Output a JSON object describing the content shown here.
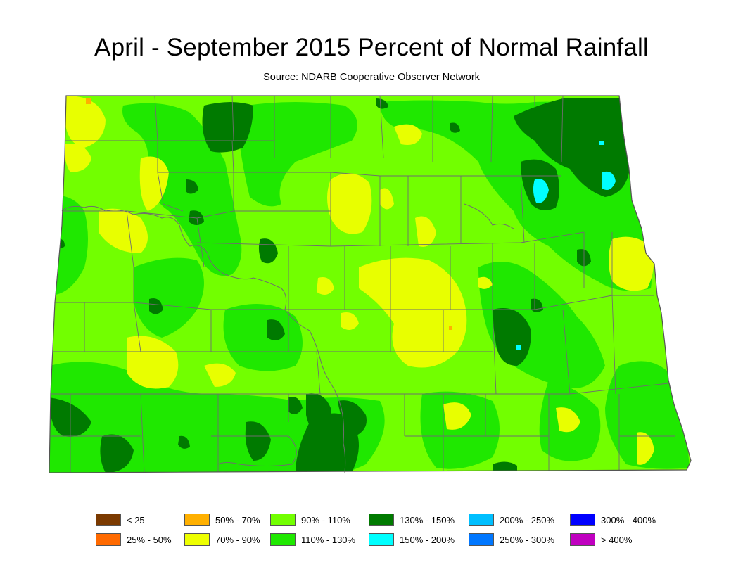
{
  "title": "April - September 2015 Percent of Normal Rainfall",
  "subtitle": "Source: NDARB Cooperative Observer Network",
  "colors": {
    "base": "#72FF00",
    "yellow": "#E8FF00",
    "mid_green": "#1FE800",
    "dark_green": "#007A00",
    "cyan": "#00FFFF",
    "orange": "#FFB000",
    "county_line": "#6E6E6E",
    "outline": "#555555"
  },
  "legend": [
    {
      "label": "< 25",
      "color": "#7B3A00"
    },
    {
      "label": "25% - 50%",
      "color": "#FF6A00"
    },
    {
      "label": "50% - 70%",
      "color": "#FFB000"
    },
    {
      "label": "70% - 90%",
      "color": "#EEFF00"
    },
    {
      "label": "90% - 110%",
      "color": "#72FF00"
    },
    {
      "label": "110% - 130%",
      "color": "#1FE800"
    },
    {
      "label": "130% - 150%",
      "color": "#007A00"
    },
    {
      "label": "150% - 200%",
      "color": "#00FFFF"
    },
    {
      "label": "200% - 250%",
      "color": "#00BFFF"
    },
    {
      "label": "250% - 300%",
      "color": "#0077FF"
    },
    {
      "label": "300% - 400%",
      "color": "#0000FF"
    },
    {
      "label": "> 400%",
      "color": "#C000C0"
    }
  ]
}
